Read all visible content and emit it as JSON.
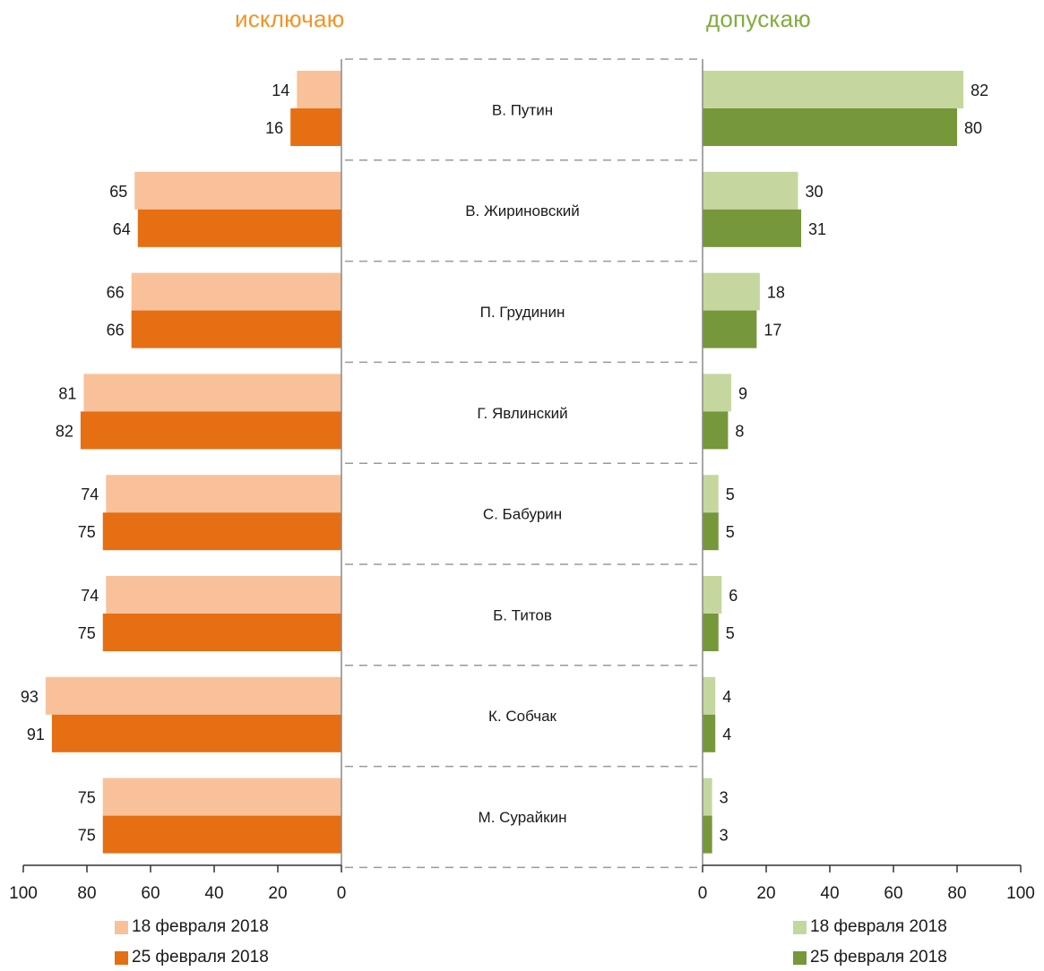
{
  "chart_data": {
    "type": "bar",
    "orientation": "horizontal",
    "layout": "butterfly",
    "headers": {
      "left": "исключаю",
      "right": "допускаю"
    },
    "categories": [
      "В. Путин",
      "В. Жириновский",
      "П. Грудинин",
      "Г. Явлинский",
      "С. Бабурин",
      "Б. Титов",
      "К. Собчак",
      "М. Сурайкин"
    ],
    "panels": {
      "left": {
        "xlim": [
          0,
          100
        ],
        "reversed": true,
        "ticks": [
          100,
          80,
          60,
          40,
          20,
          0
        ],
        "series": [
          {
            "name": "18 февраля 2018",
            "values": [
              14,
              65,
              66,
              81,
              74,
              74,
              93,
              75
            ]
          },
          {
            "name": "25 февраля 2018",
            "values": [
              16,
              64,
              66,
              82,
              75,
              75,
              91,
              75
            ]
          }
        ]
      },
      "right": {
        "xlim": [
          0,
          100
        ],
        "reversed": false,
        "ticks": [
          0,
          20,
          40,
          60,
          80,
          100
        ],
        "series": [
          {
            "name": "18 февраля 2018",
            "values": [
              82,
              30,
              18,
              9,
              5,
              6,
              4,
              3
            ]
          },
          {
            "name": "25 февраля 2018",
            "values": [
              80,
              31,
              17,
              8,
              5,
              5,
              4,
              3
            ]
          }
        ]
      }
    },
    "colors": {
      "left_18": "#f9c19a",
      "left_25": "#e66e13",
      "right_18": "#c5d79f",
      "right_25": "#76973a",
      "left_header": "#f39325",
      "right_header": "#7fae3b"
    },
    "legend_placement": "bottom"
  }
}
